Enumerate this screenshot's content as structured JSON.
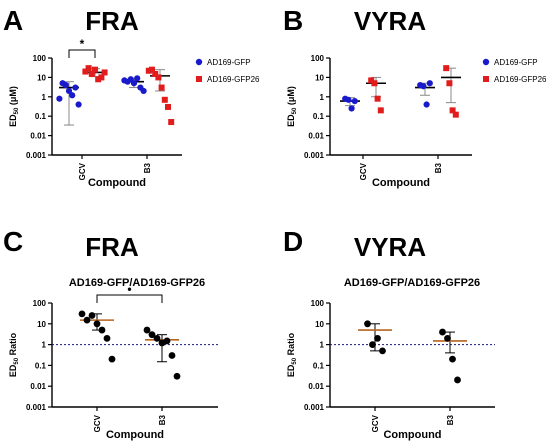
{
  "panels": [
    {
      "letter": "A",
      "title": "FRA"
    },
    {
      "letter": "B",
      "title": "VYRA"
    },
    {
      "letter": "C",
      "title": "FRA",
      "subtitle": "AD169-GFP/AD169-GFP26"
    },
    {
      "letter": "D",
      "title": "VYRA",
      "subtitle": "AD169-GFP/AD169-GFP26"
    }
  ],
  "colors": {
    "gfp": "#1a1acd",
    "gfp26": "#e11c1c",
    "ratio": "#000000",
    "mean_line": "#b5651d",
    "ref_line": "#1a1a6e"
  },
  "chart_data": [
    {
      "type": "scatter",
      "title": "FRA",
      "xlabel": "Compound",
      "ylabel": "ED50 (μM)",
      "ylabel_main": "ED",
      "ylabel_sub": "50",
      "ylabel_unit": "(μM)",
      "yscale": "log",
      "ylim": [
        0.001,
        100
      ],
      "yticks": [
        "0.001",
        "0.01",
        "0.1",
        "1",
        "10",
        "100"
      ],
      "categories": [
        "GCV",
        "B3"
      ],
      "legend": [
        "AD169-GFP",
        "AD169-GFP26"
      ],
      "legend_position": "right",
      "significance": {
        "between": [
          "GCV AD169-GFP",
          "GCV AD169-GFP26"
        ],
        "label": "*"
      },
      "series": [
        {
          "name": "AD169-GFP",
          "marker": "circle",
          "color": "#1a1acd",
          "points": [
            {
              "category": "GCV",
              "values": [
                0.8,
                5,
                4,
                2,
                1.2,
                3,
                0.4
              ],
              "mean": 3,
              "sd_low": 0.035,
              "sd_high": 6
            }
          ]
        },
        {
          "name": "AD169-GFP26",
          "marker": "square",
          "color": "#e11c1c",
          "points": [
            {
              "category": "GCV",
              "values": [
                20,
                30,
                15,
                25,
                8,
                10,
                18
              ],
              "mean": 18,
              "sd_low": 11,
              "sd_high": 28
            }
          ]
        },
        {
          "name": "AD169-GFP",
          "marker": "circle",
          "color": "#1a1acd",
          "points": [
            {
              "category": "B3",
              "values": [
                7,
                6,
                8,
                5,
                9,
                3,
                2
              ],
              "mean": 6,
              "sd_low": 3,
              "sd_high": 9
            }
          ]
        },
        {
          "name": "AD169-GFP26",
          "marker": "square",
          "color": "#e11c1c",
          "points": [
            {
              "category": "B3",
              "values": [
                22,
                25,
                15,
                10,
                3,
                0.7,
                0.3,
                0.05
              ],
              "mean": 12,
              "sd_low": 2,
              "sd_high": 25
            }
          ]
        }
      ]
    },
    {
      "type": "scatter",
      "title": "VYRA",
      "xlabel": "Compound",
      "ylabel": "ED50 (μM)",
      "ylabel_main": "ED",
      "ylabel_sub": "50",
      "ylabel_unit": "(μM)",
      "yscale": "log",
      "ylim": [
        0.001,
        100
      ],
      "yticks": [
        "0.001",
        "0.01",
        "0.1",
        "1",
        "10",
        "100"
      ],
      "categories": [
        "GCV",
        "B3"
      ],
      "legend": [
        "AD169-GFP",
        "AD169-GFP26"
      ],
      "legend_position": "right",
      "series": [
        {
          "name": "AD169-GFP",
          "marker": "circle",
          "color": "#1a1acd",
          "points": [
            {
              "category": "GCV",
              "values": [
                0.8,
                0.7,
                0.25,
                0.6
              ],
              "mean": 0.6,
              "sd_low": 0.35,
              "sd_high": 0.9
            }
          ]
        },
        {
          "name": "AD169-GFP26",
          "marker": "square",
          "color": "#e11c1c",
          "points": [
            {
              "category": "GCV",
              "values": [
                7,
                5,
                0.8,
                0.2
              ],
              "mean": 5,
              "sd_low": 1,
              "sd_high": 10
            }
          ]
        },
        {
          "name": "AD169-GFP",
          "marker": "circle",
          "color": "#1a1acd",
          "points": [
            {
              "category": "B3",
              "values": [
                4,
                3.5,
                0.4,
                5
              ],
              "mean": 3,
              "sd_low": 1.2,
              "sd_high": 5
            }
          ]
        },
        {
          "name": "AD169-GFP26",
          "marker": "square",
          "color": "#e11c1c",
          "points": [
            {
              "category": "B3",
              "values": [
                30,
                5,
                0.2,
                0.12
              ],
              "mean": 10,
              "sd_low": 0.5,
              "sd_high": 30
            }
          ]
        }
      ]
    },
    {
      "type": "scatter",
      "title": "AD169-GFP/AD169-GFP26",
      "xlabel": "Compound",
      "ylabel": "ED50 Ratio",
      "ylabel_main": "ED",
      "ylabel_sub": "50",
      "ylabel_unit": "Ratio",
      "yscale": "log",
      "ylim": [
        0.001,
        100
      ],
      "yticks": [
        "0.001",
        "0.01",
        "0.1",
        "1",
        "10",
        "100"
      ],
      "categories": [
        "GCV",
        "B3"
      ],
      "reference_line": 1,
      "significance": {
        "between": [
          "GCV",
          "B3"
        ],
        "label": "•"
      },
      "series": [
        {
          "name": "",
          "marker": "circle",
          "color": "#000000",
          "points": [
            {
              "category": "GCV",
              "values": [
                30,
                15,
                25,
                10,
                5,
                2,
                0.2
              ],
              "mean": 15,
              "sd_low": 5,
              "sd_high": 30
            },
            {
              "category": "B3",
              "values": [
                5,
                3,
                2,
                1.2,
                1.5,
                0.3,
                0.03
              ],
              "mean": 1.7,
              "sd_low": 0.15,
              "sd_high": 3
            }
          ]
        }
      ]
    },
    {
      "type": "scatter",
      "title": "AD169-GFP/AD169-GFP26",
      "xlabel": "Compound",
      "ylabel": "ED50 Ratio",
      "ylabel_main": "ED",
      "ylabel_sub": "50",
      "ylabel_unit": "Ratio",
      "yscale": "log",
      "ylim": [
        0.001,
        100
      ],
      "yticks": [
        "0.001",
        "0.01",
        "0.1",
        "1",
        "10",
        "100"
      ],
      "categories": [
        "GCV",
        "B3"
      ],
      "reference_line": 1,
      "series": [
        {
          "name": "",
          "marker": "circle",
          "color": "#000000",
          "points": [
            {
              "category": "GCV",
              "values": [
                10,
                1,
                2,
                0.5
              ],
              "mean": 5,
              "sd_low": 0.5,
              "sd_high": 10
            },
            {
              "category": "B3",
              "values": [
                4,
                2,
                0.2,
                0.02
              ],
              "mean": 1.5,
              "sd_low": 0.4,
              "sd_high": 4
            }
          ]
        }
      ]
    }
  ]
}
